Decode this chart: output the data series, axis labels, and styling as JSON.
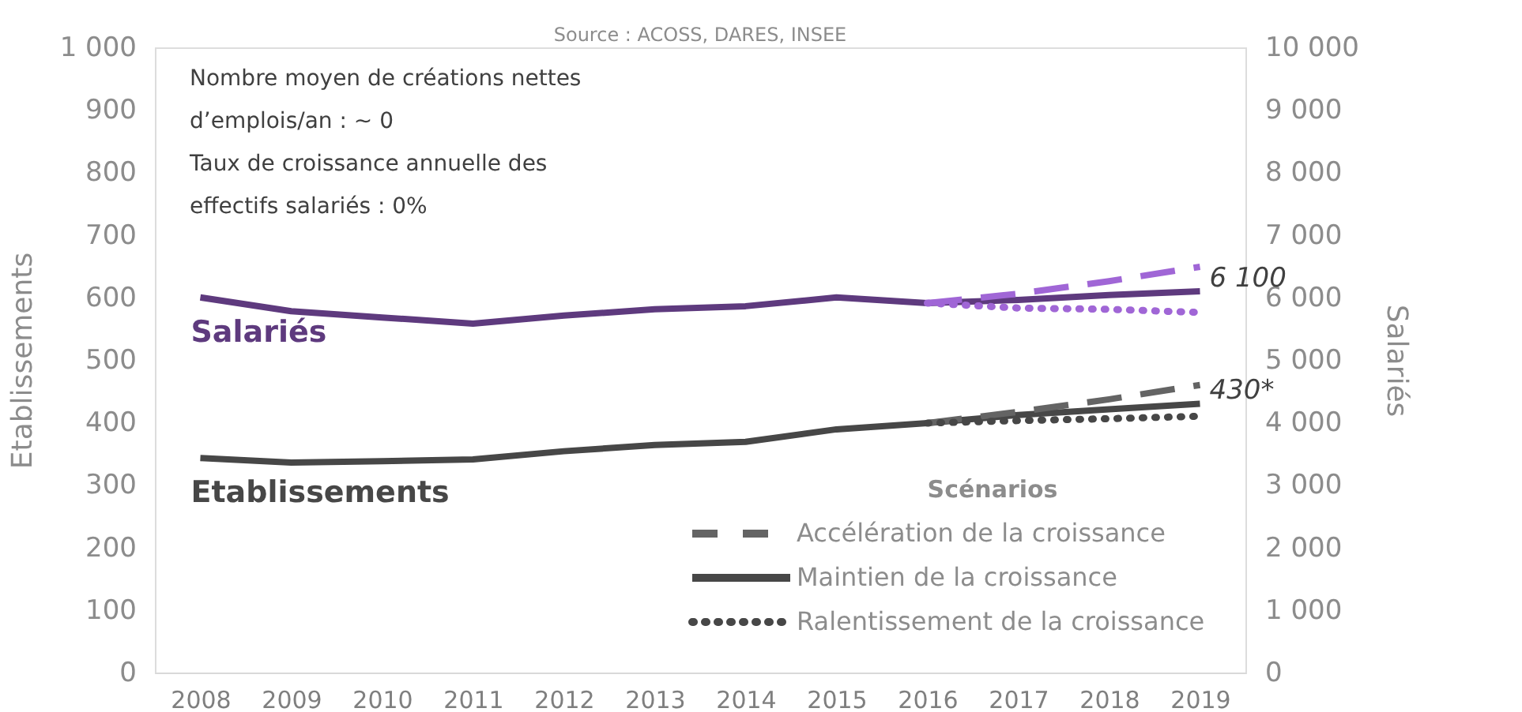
{
  "chart_data": {
    "type": "line",
    "categories": [
      "2008",
      "2009",
      "2010",
      "2011",
      "2012",
      "2013",
      "2014",
      "2015",
      "2016",
      "2017",
      "2018",
      "2019"
    ],
    "ylabel": "Etablissements",
    "y2label": "Salariés",
    "legend_title": "Scénarios",
    "ylim": [
      0,
      1000
    ],
    "yticks": [
      0,
      100,
      200,
      300,
      400,
      500,
      600,
      700,
      800,
      900,
      {
        "value": 1000,
        "label": "1 000"
      }
    ],
    "y2lim": [
      0,
      10000
    ],
    "y2ticks": [
      0,
      {
        "value": 1000,
        "label": "1 000"
      },
      {
        "value": 2000,
        "label": "2 000"
      },
      {
        "value": 3000,
        "label": "3 000"
      },
      {
        "value": 4000,
        "label": "4 000"
      },
      {
        "value": 5000,
        "label": "5 000"
      },
      {
        "value": 6000,
        "label": "6 000"
      },
      {
        "value": 7000,
        "label": "7 000"
      },
      {
        "value": 8000,
        "label": "8 000"
      },
      {
        "value": 9000,
        "label": "9 000"
      },
      {
        "value": 10000,
        "label": "10 000"
      }
    ],
    "grid": false,
    "legend": "bottom right",
    "marker": "none",
    "annotations": [
      "Source : ACOSS, DARES, INSEE",
      "Nombre moyen de créations nettes d’emplois/an : ~ 0",
      "Taux de croissance annuelle des effectifs salariés : 0%"
    ],
    "series": [
      {
        "name": "Etablissements",
        "color": "#474747",
        "line_style": "solid",
        "values": [
          343,
          336,
          338,
          341,
          354,
          364,
          369,
          389,
          399,
          412,
          421,
          430
        ],
        "value_labels": [
          null,
          null,
          null,
          null,
          null,
          null,
          null,
          null,
          null,
          null,
          null,
          "430*"
        ]
      },
      {
        "name": "Accélération de la croissance",
        "color": "#646464",
        "line_style": "dashed",
        "values": [
          null,
          null,
          null,
          null,
          null,
          null,
          null,
          null,
          399,
          417,
          437,
          460
        ]
      },
      {
        "name": "Maintien de la croissance",
        "color": "#474747",
        "line_style": "solid",
        "values": [
          null,
          null,
          null,
          null,
          null,
          null,
          null,
          null,
          null,
          null,
          null,
          null
        ]
      },
      {
        "name": "Ralentissement de la croissance",
        "color": "#474747",
        "line_style": "dotted",
        "values": [
          null,
          null,
          null,
          null,
          null,
          null,
          null,
          null,
          399,
          403,
          406,
          410
        ]
      },
      {
        "name": "Salariés",
        "color": "#5e3a7e",
        "line_style": "solid",
        "axis": "y2",
        "values": [
          6000,
          5780,
          5680,
          5580,
          5710,
          5810,
          5860,
          6000,
          5910,
          5960,
          6040,
          6100
        ],
        "value_labels": [
          null,
          null,
          null,
          null,
          null,
          null,
          null,
          null,
          null,
          null,
          null,
          "6 100"
        ]
      },
      {
        "color": "#a066d6",
        "line_style": "dashed",
        "axis": "y2",
        "values": [
          null,
          null,
          null,
          null,
          null,
          null,
          null,
          null,
          5910,
          6060,
          6260,
          6490
        ]
      },
      {
        "color": "#a066d6",
        "line_style": "dotted",
        "axis": "y2",
        "values": [
          null,
          null,
          null,
          null,
          null,
          null,
          null,
          null,
          5910,
          5830,
          5810,
          5760
        ]
      }
    ]
  }
}
